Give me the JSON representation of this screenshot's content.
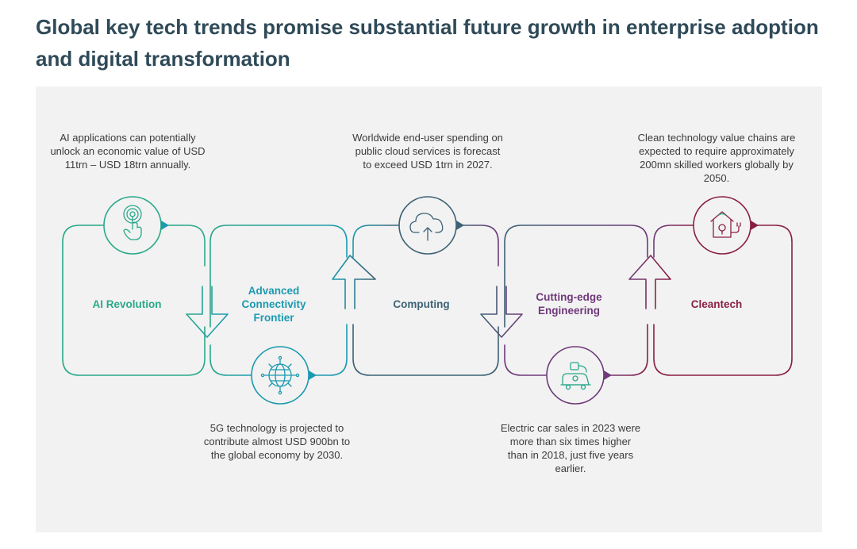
{
  "title": "Global key tech trends promise substantial future growth in enterprise adoption and digital transformation",
  "colors": {
    "ai": "#2aa88a",
    "connectivity": "#1c9ab0",
    "computing": "#3d6275",
    "engineering": "#6e3a7a",
    "cleantech": "#8a1f45",
    "panel_bg": "#f2f2f2",
    "title": "#2f4a58"
  },
  "stages": [
    {
      "label": "AI Revolution",
      "icon": "touch-hand-icon",
      "note": "AI applications can potentially unlock an economic value of USD 11trn – USD 18trn annually."
    },
    {
      "label": "Advanced Connectivity Frontier",
      "icon": "globe-network-icon",
      "note": "5G technology is projected to contribute almost USD 900bn to the global economy by 2030."
    },
    {
      "label": "Computing",
      "icon": "cloud-upload-icon",
      "note": "Worldwide end-user spending on public cloud services is forecast to exceed USD 1trn in 2027."
    },
    {
      "label": "Cutting-edge Engineering",
      "icon": "electric-car-charger-icon",
      "note": "Electric car sales in 2023 were more than six times higher than in 2018, just five years earlier."
    },
    {
      "label": "Cleantech",
      "icon": "eco-house-plug-icon",
      "note": "Clean technology value chains are expected to require approximately 200mn skilled workers globally by 2050."
    }
  ]
}
